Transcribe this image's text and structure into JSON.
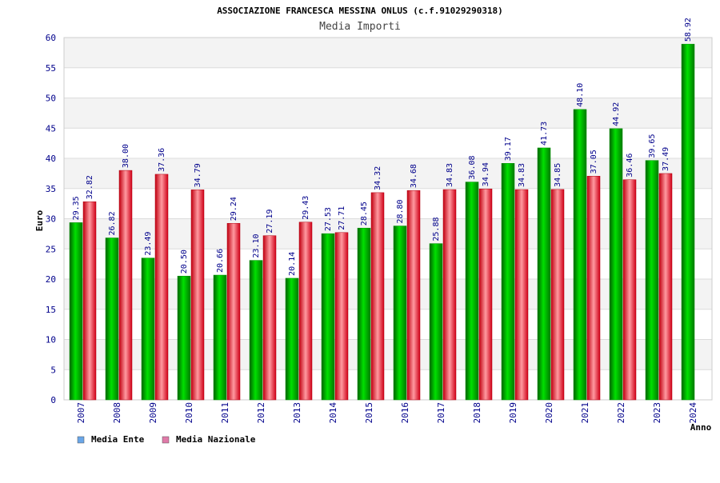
{
  "chart_data": {
    "type": "bar",
    "title": "ASSOCIAZIONE FRANCESCA MESSINA ONLUS (c.f.91029290318)",
    "subtitle": "Media Importi",
    "xlabel": "Anno",
    "ylabel": "Euro",
    "ylim": [
      0,
      60
    ],
    "yticks": [
      0,
      5,
      10,
      15,
      20,
      25,
      30,
      35,
      40,
      45,
      50,
      55,
      60
    ],
    "grid": true,
    "legend_position": "bottom-left",
    "categories": [
      "2007",
      "2008",
      "2009",
      "2010",
      "2011",
      "2012",
      "2013",
      "2014",
      "2015",
      "2016",
      "2017",
      "2018",
      "2019",
      "2020",
      "2021",
      "2022",
      "2023",
      "2024"
    ],
    "series": [
      {
        "name": "Media Ente",
        "color": "#00c000",
        "legend_color": "#6aa6e8",
        "values": [
          29.35,
          26.82,
          23.49,
          20.5,
          20.66,
          23.1,
          20.14,
          27.53,
          28.45,
          28.8,
          25.88,
          36.08,
          39.17,
          41.73,
          48.1,
          44.92,
          39.65,
          58.92
        ],
        "labels": [
          "29.35",
          "26.82",
          "23.49",
          "20.50",
          "20.66",
          "23.10",
          "20.14",
          "27.53",
          "28.45",
          "28.80",
          "25.88",
          "36.08",
          "39.17",
          "41.73",
          "48.10",
          "44.92",
          "39.65",
          "58.92"
        ]
      },
      {
        "name": "Media Nazionale",
        "color": "#e8202a",
        "legend_color": "#e07aa8",
        "values": [
          32.82,
          38.0,
          37.36,
          34.79,
          29.24,
          27.19,
          29.43,
          27.71,
          34.32,
          34.68,
          34.83,
          34.94,
          34.83,
          34.85,
          37.05,
          36.46,
          37.49,
          null
        ],
        "labels": [
          "32.82",
          "38.00",
          "37.36",
          "34.79",
          "29.24",
          "27.19",
          "29.43",
          "27.71",
          "34.32",
          "34.68",
          "34.83",
          "34.94",
          "34.83",
          "34.85",
          "37.05",
          "36.46",
          "37.49",
          ""
        ]
      }
    ]
  }
}
